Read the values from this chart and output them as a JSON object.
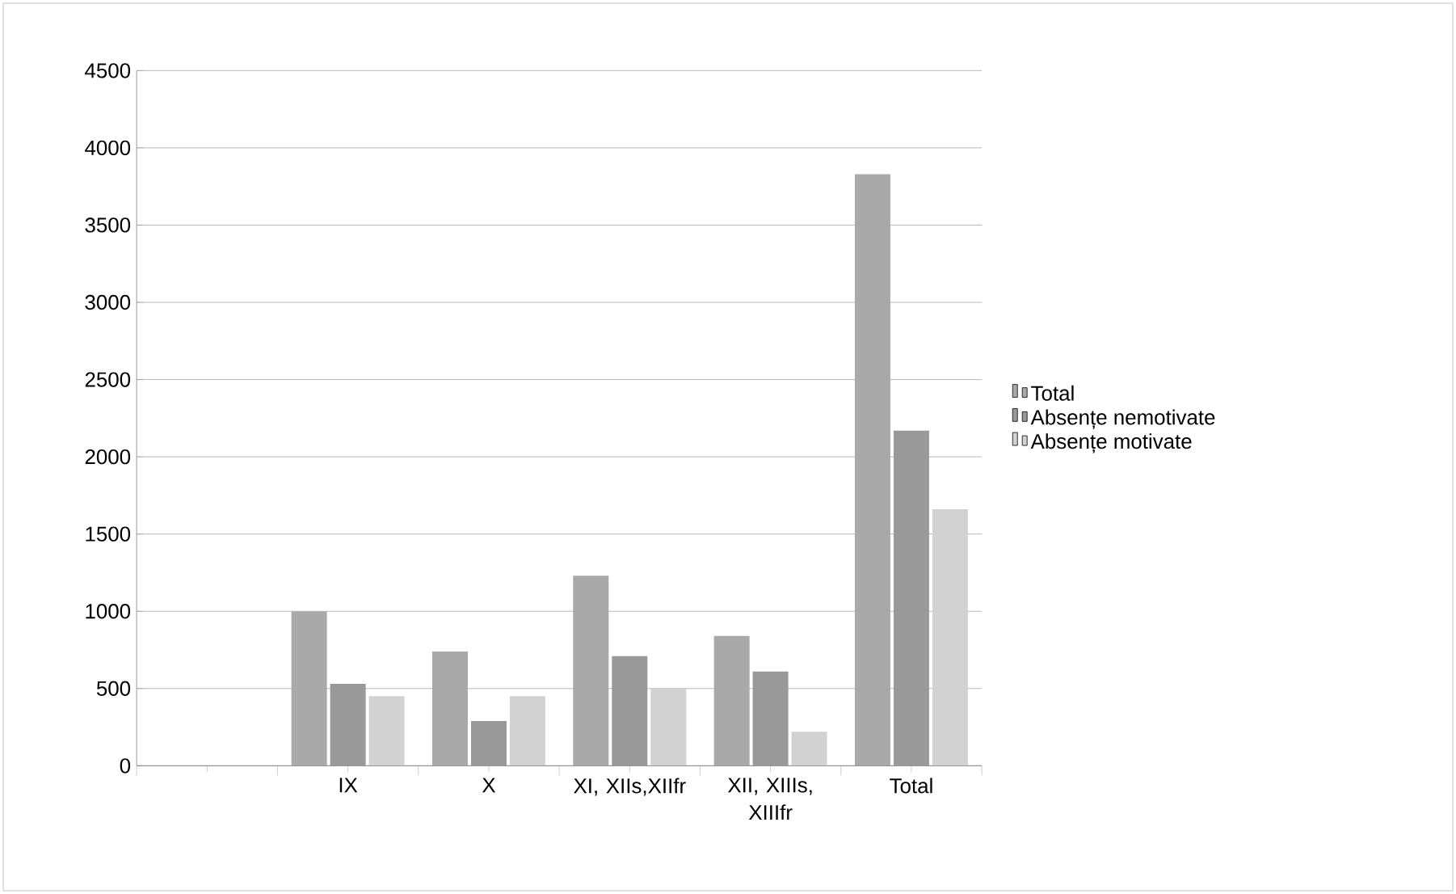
{
  "chart_data": {
    "type": "bar",
    "categories": [
      null,
      "IX",
      "X",
      "XI, XIIs,XIIfr",
      "XII, XIIIs, XIIIfr",
      "Total"
    ],
    "series": [
      {
        "name": "Total",
        "color": "#a9a9a9",
        "values": [
          null,
          1000,
          740,
          1230,
          840,
          3830
        ]
      },
      {
        "name": "Absențe nemotivate",
        "color": "#999999",
        "values": [
          null,
          530,
          290,
          710,
          610,
          2170
        ]
      },
      {
        "name": "Absențe motivate",
        "color": "#d2d2d2",
        "values": [
          null,
          450,
          450,
          500,
          220,
          1660
        ]
      }
    ],
    "ylim": [
      0,
      4500
    ],
    "yticks": [
      0,
      500,
      1000,
      1500,
      2000,
      2500,
      3000,
      3500,
      4000,
      4500
    ],
    "grid": "y",
    "legend": "right"
  }
}
